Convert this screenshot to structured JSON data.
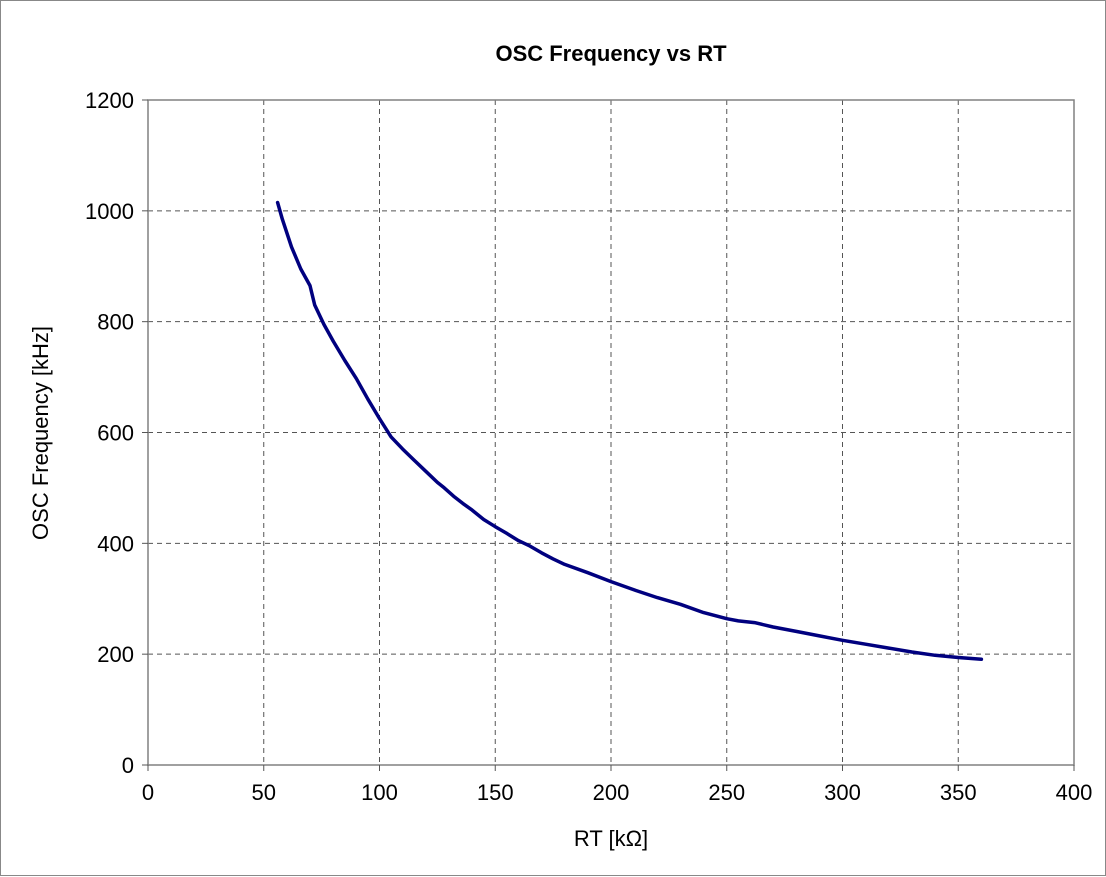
{
  "chart_data": {
    "type": "line",
    "title": "OSC Frequency vs RT",
    "xlabel": "RT [kΩ]",
    "ylabel": "OSC Frequency [kHz]",
    "xlim": [
      0,
      400
    ],
    "ylim": [
      0,
      1200
    ],
    "xticks": [
      0,
      50,
      100,
      150,
      200,
      250,
      300,
      350,
      400
    ],
    "yticks": [
      0,
      200,
      400,
      600,
      800,
      1000,
      1200
    ],
    "grid": true,
    "grid_style": "dashed",
    "legend": "none",
    "series": [
      {
        "color": "#00007f",
        "x": [
          56,
          58,
          62,
          66,
          70,
          72,
          76,
          80,
          85,
          90,
          95,
          100,
          105,
          110,
          115,
          120,
          125,
          128,
          132,
          136,
          140,
          145,
          150,
          155,
          160,
          165,
          170,
          175,
          180,
          190,
          200,
          210,
          220,
          230,
          240,
          250,
          255,
          262,
          270,
          280,
          290,
          300,
          310,
          320,
          330,
          340,
          350,
          360
        ],
        "y": [
          1015,
          985,
          935,
          895,
          865,
          830,
          795,
          765,
          730,
          697,
          660,
          625,
          592,
          570,
          550,
          530,
          510,
          500,
          485,
          472,
          460,
          443,
          430,
          418,
          405,
          395,
          383,
          372,
          362,
          347,
          331,
          316,
          302,
          290,
          275,
          264,
          260,
          257,
          249,
          241,
          233,
          225,
          218,
          211,
          204,
          198,
          194,
          191
        ]
      }
    ]
  }
}
